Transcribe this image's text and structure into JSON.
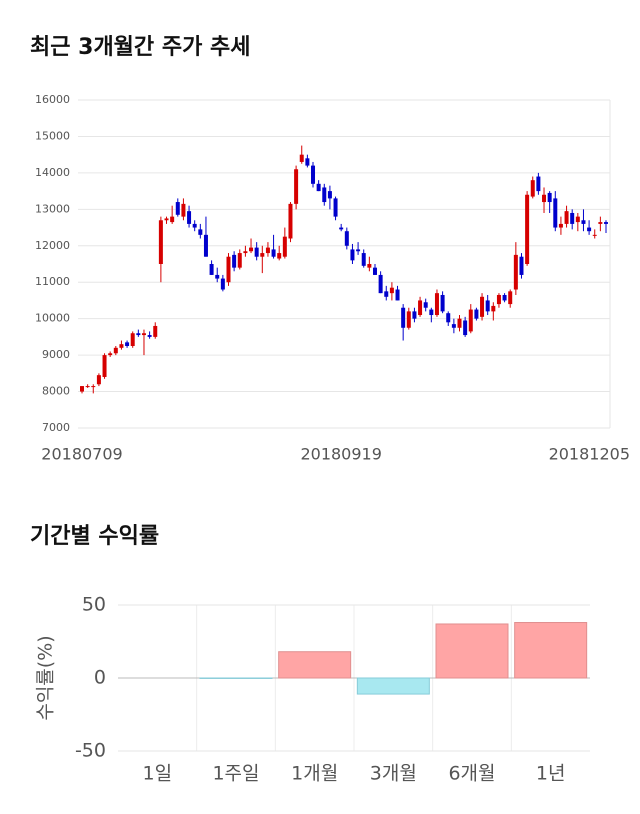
{
  "chart_data": [
    {
      "type": "candlestick",
      "title": "최근 3개월간 주가 추세",
      "categories": [
        "20180709",
        null,
        null,
        null,
        null,
        null,
        null,
        null,
        null,
        null,
        null,
        null,
        null,
        null,
        null,
        null,
        null,
        null,
        null,
        null,
        null,
        null,
        null,
        null,
        null,
        null,
        null,
        null,
        null,
        null,
        null,
        null,
        null,
        null,
        null,
        null,
        null,
        null,
        null,
        null,
        null,
        null,
        null,
        null,
        null,
        null,
        "20180919",
        null,
        null,
        null,
        null,
        null,
        null,
        null,
        null,
        null,
        null,
        null,
        null,
        null,
        null,
        null,
        null,
        null,
        null,
        null,
        null,
        null,
        null,
        null,
        null,
        null,
        null,
        null,
        null,
        null,
        null,
        null,
        null,
        null,
        null,
        null,
        null,
        null,
        null,
        null,
        null,
        null,
        null,
        null,
        null,
        null,
        null,
        "20181205"
      ],
      "open": [
        8000,
        8150,
        8150,
        8200,
        8400,
        9000,
        9050,
        9200,
        9350,
        9250,
        9600,
        9550,
        9550,
        9500,
        11500,
        12700,
        12650,
        13200,
        12800,
        12950,
        12600,
        12450,
        12300,
        11500,
        11200,
        11100,
        11000,
        11750,
        11400,
        11800,
        11850,
        11950,
        11700,
        11800,
        11900,
        11650,
        11700,
        12200,
        13150,
        14300,
        14400,
        14200,
        13700,
        13600,
        13500,
        13300,
        12500,
        12400,
        11900,
        11900,
        11800,
        11400,
        11400,
        11200,
        10750,
        10700,
        10800,
        10300,
        9750,
        10200,
        10100,
        10450,
        10250,
        10100,
        10650,
        10150,
        9850,
        9750,
        9950,
        9650,
        10250,
        10050,
        10500,
        10200,
        10400,
        10650,
        10400,
        10800,
        11700,
        11500,
        13350,
        13900,
        13200,
        13450,
        13300,
        12500,
        12600,
        12900,
        12650,
        12700,
        12500,
        12300,
        12600,
        12650
      ],
      "high": [
        8150,
        8200,
        8200,
        8500,
        9050,
        9100,
        9250,
        9400,
        9400,
        9650,
        9700,
        9700,
        9650,
        9900,
        12800,
        12800,
        13100,
        13300,
        13300,
        13100,
        12700,
        12600,
        12800,
        11600,
        11400,
        11200,
        11800,
        11850,
        11900,
        12000,
        12200,
        12100,
        12000,
        12100,
        12300,
        12000,
        12500,
        13200,
        14200,
        14750,
        14500,
        14300,
        13800,
        13700,
        13650,
        13350,
        12600,
        12500,
        12050,
        12100,
        11900,
        11700,
        11500,
        11300,
        10900,
        11000,
        10900,
        10400,
        10300,
        10300,
        10600,
        10550,
        10300,
        10800,
        10750,
        10200,
        10000,
        10100,
        10050,
        10400,
        10300,
        10700,
        10650,
        10450,
        10700,
        10700,
        10800,
        12100,
        11800,
        13500,
        13900,
        14000,
        13600,
        13500,
        13500,
        12800,
        13100,
        13000,
        12900,
        13000,
        12700,
        12450,
        12800,
        12700
      ],
      "low": [
        7950,
        8100,
        7950,
        8150,
        8350,
        8950,
        9000,
        9150,
        9200,
        9200,
        9500,
        9000,
        9450,
        9450,
        11000,
        12600,
        12600,
        12800,
        12700,
        12500,
        12400,
        12200,
        11700,
        11200,
        11000,
        10750,
        10900,
        11300,
        11350,
        11700,
        11800,
        11600,
        11250,
        11700,
        11650,
        11600,
        11650,
        12100,
        13000,
        14250,
        14150,
        13600,
        13500,
        13100,
        13000,
        12700,
        12400,
        11900,
        11500,
        11750,
        11400,
        11300,
        11200,
        10700,
        10500,
        10500,
        10500,
        9400,
        9700,
        9900,
        10050,
        10200,
        9900,
        10050,
        10150,
        9800,
        9600,
        9650,
        9500,
        9600,
        9950,
        9950,
        10100,
        9950,
        10300,
        10450,
        10300,
        10650,
        11100,
        11450,
        13300,
        13400,
        12900,
        12900,
        12400,
        12300,
        12500,
        12450,
        12400,
        12400,
        12300,
        12200,
        12400,
        12350
      ],
      "close": [
        8150,
        8150,
        8150,
        8450,
        9000,
        9050,
        9200,
        9300,
        9250,
        9600,
        9550,
        9600,
        9500,
        9800,
        12700,
        12750,
        12800,
        12850,
        13150,
        12600,
        12500,
        12300,
        11700,
        11200,
        11100,
        10800,
        11700,
        11400,
        11800,
        11850,
        11950,
        11700,
        11800,
        11950,
        11700,
        11800,
        12250,
        13150,
        14100,
        14500,
        14200,
        13700,
        13500,
        13200,
        13300,
        12800,
        12450,
        12000,
        11600,
        11850,
        11450,
        11500,
        11200,
        10700,
        10600,
        10850,
        10500,
        9750,
        10200,
        10000,
        10500,
        10300,
        10100,
        10700,
        10200,
        9900,
        9750,
        10000,
        9550,
        10250,
        10000,
        10600,
        10200,
        10350,
        10650,
        10500,
        10750,
        11750,
        11200,
        13400,
        13800,
        13500,
        13400,
        13200,
        12500,
        12600,
        12950,
        12600,
        12800,
        12600,
        12400,
        12300,
        12650,
        12600
      ],
      "up_color": "#d60000",
      "down_color": "#0000cc",
      "ylim": [
        7000,
        16000
      ],
      "yticks": [
        7000,
        8000,
        9000,
        10000,
        11000,
        12000,
        13000,
        14000,
        15000,
        16000
      ],
      "grid": true
    },
    {
      "type": "bar",
      "title": "기간별 수익률",
      "ylabel": "수익률(%)",
      "categories": [
        "1일",
        "1주일",
        "1개월",
        "3개월",
        "6개월",
        "1년"
      ],
      "values": [
        0,
        -0.3,
        18,
        -11,
        37,
        38
      ],
      "positive_color": "#ffa5a5",
      "negative_color": "#a8e8f0",
      "ylim": [
        -50,
        50
      ],
      "yticks": [
        -50,
        0,
        50
      ],
      "grid": true
    }
  ]
}
